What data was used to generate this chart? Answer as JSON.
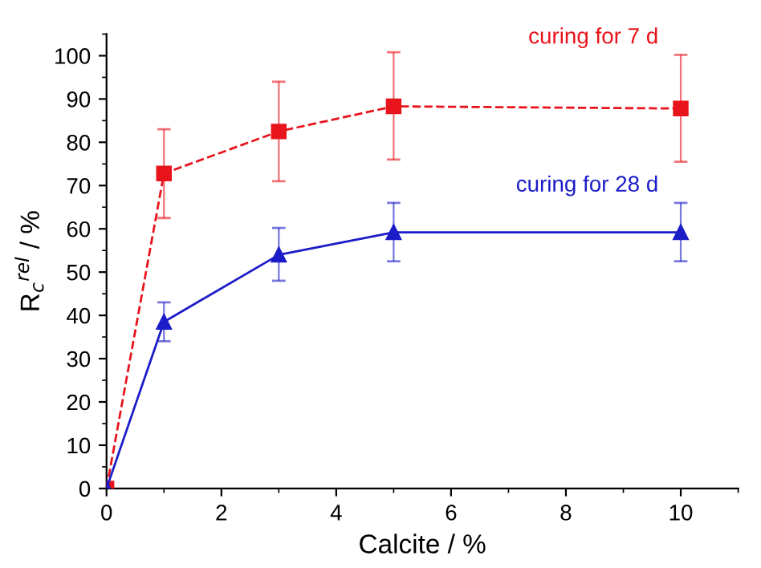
{
  "chart_data": {
    "type": "line",
    "xlabel": "Calcite / %",
    "ylabel": "R$_{c}$$^{rel}$ / %",
    "x": [
      0,
      1,
      3,
      5,
      10
    ],
    "series": [
      {
        "name": "curing for 7 d",
        "color": "#e8141c",
        "marker": "square",
        "line_style": "dashed",
        "values": [
          0,
          72.8,
          82.5,
          88.3,
          87.8
        ],
        "errors": [
          null,
          [
            62.5,
            83
          ],
          [
            71,
            94
          ],
          [
            76,
            100.8
          ],
          [
            75.5,
            100.2
          ]
        ]
      },
      {
        "name": "curing for 28 d",
        "color": "#1c1cc8",
        "marker": "triangle",
        "line_style": "solid",
        "values": [
          0,
          38.5,
          54,
          59.2,
          59.2
        ],
        "errors": [
          null,
          [
            34,
            43
          ],
          [
            48,
            60.2
          ],
          [
            52.5,
            66
          ],
          [
            52.5,
            66
          ]
        ]
      }
    ],
    "xlim": [
      0,
      11
    ],
    "ylim": [
      0,
      105
    ],
    "xticks": [
      0,
      2,
      4,
      6,
      8,
      10
    ],
    "yticks": [
      0,
      10,
      20,
      30,
      40,
      50,
      60,
      70,
      80,
      90,
      100
    ],
    "grid": false,
    "legend": false
  }
}
